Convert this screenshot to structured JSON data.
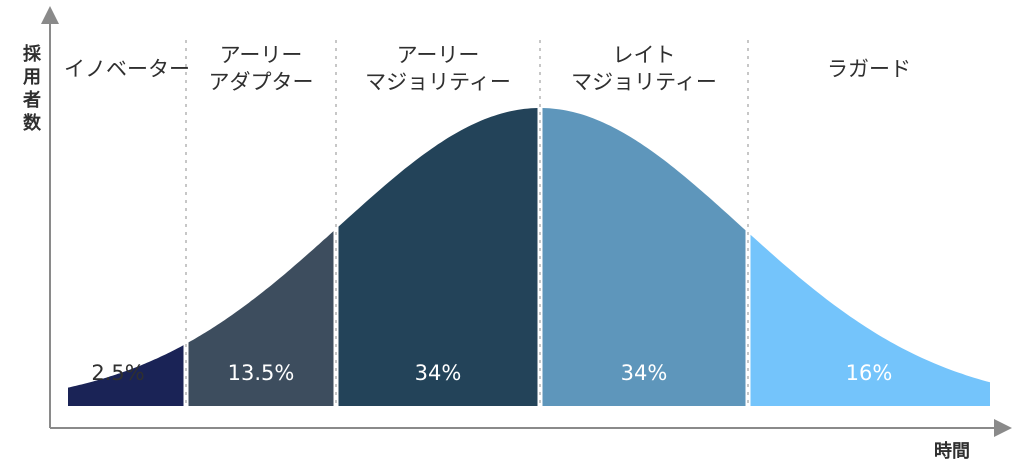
{
  "axes": {
    "y_label": "採用者数",
    "x_label": "時間"
  },
  "segments": [
    {
      "label_lines": [
        "イノベーター"
      ],
      "percent": "2.5%",
      "share": 2.5,
      "color": "#1a2356",
      "percent_color": "#2f2f2f"
    },
    {
      "label_lines": [
        "アーリー",
        "アダプター"
      ],
      "percent": "13.5%",
      "share": 13.5,
      "color": "#3d4d5e",
      "percent_color": "#ffffff"
    },
    {
      "label_lines": [
        "アーリー",
        "マジョリティー"
      ],
      "percent": "34%",
      "share": 34,
      "color": "#234359",
      "percent_color": "#ffffff"
    },
    {
      "label_lines": [
        "レイト",
        "マジョリティー"
      ],
      "percent": "34%",
      "share": 34,
      "color": "#5e96bb",
      "percent_color": "#ffffff"
    },
    {
      "label_lines": [
        "ラガード"
      ],
      "percent": "16%",
      "share": 16,
      "color": "#74c4fb",
      "percent_color": "#ffffff"
    }
  ]
}
